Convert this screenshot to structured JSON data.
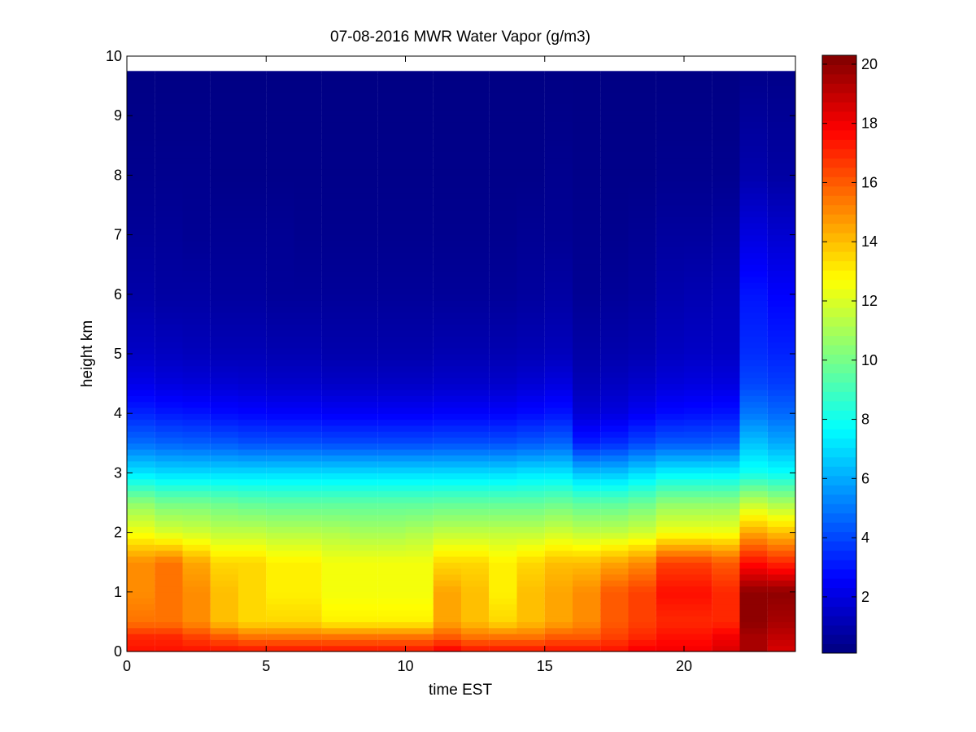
{
  "chart_data": {
    "type": "heatmap",
    "title": "07-08-2016 MWR Water Vapor (g/m3)",
    "xlabel": "time EST",
    "ylabel": "height km",
    "xlim": [
      0,
      24
    ],
    "ylim": [
      0,
      10
    ],
    "x_ticks": [
      "0",
      "5",
      "10",
      "15",
      "20"
    ],
    "y_ticks": [
      "0",
      "1",
      "2",
      "3",
      "4",
      "5",
      "6",
      "7",
      "8",
      "9",
      "10"
    ],
    "colorbar": {
      "colormap": "jet",
      "clim": [
        0.1,
        20.3
      ],
      "ticks": [
        "2",
        "4",
        "6",
        "8",
        "10",
        "12",
        "14",
        "16",
        "18",
        "20"
      ]
    },
    "time_hours": [
      0,
      1,
      2,
      3,
      4,
      5,
      6,
      7,
      8,
      9,
      10,
      11,
      12,
      13,
      14,
      15,
      16,
      17,
      18,
      19,
      20,
      21,
      22,
      23
    ],
    "profile_heights_km": [
      0,
      0.25,
      0.5,
      1.0,
      1.5,
      2.0,
      2.5,
      3.0,
      3.5,
      4.0,
      4.5,
      5.0,
      6.0,
      7.0,
      8.0,
      9.75
    ],
    "profiles_g_m3": [
      [
        17.5,
        17.0,
        15.5,
        15.0,
        15.0,
        12.5,
        10.5,
        7.2,
        4.8,
        3.3,
        2.2,
        1.5,
        0.9,
        0.6,
        0.4,
        0.2
      ],
      [
        17.5,
        17.0,
        15.5,
        15.5,
        15.5,
        12.0,
        10.0,
        7.0,
        4.6,
        3.1,
        2.0,
        1.4,
        0.8,
        0.6,
        0.4,
        0.2
      ],
      [
        17.5,
        16.5,
        15.0,
        15.0,
        14.5,
        11.8,
        10.0,
        7.0,
        4.5,
        3.0,
        1.9,
        1.3,
        0.8,
        0.5,
        0.4,
        0.2
      ],
      [
        17.5,
        16.0,
        14.0,
        14.0,
        13.5,
        11.5,
        9.8,
        7.0,
        4.4,
        2.8,
        1.8,
        1.2,
        0.7,
        0.5,
        0.3,
        0.2
      ],
      [
        17.5,
        15.5,
        13.5,
        13.5,
        13.5,
        11.5,
        9.6,
        7.0,
        4.2,
        2.7,
        1.7,
        1.2,
        0.7,
        0.5,
        0.3,
        0.2
      ],
      [
        17.5,
        15.5,
        13.5,
        13.0,
        13.0,
        11.3,
        9.5,
        7.0,
        4.2,
        2.6,
        1.6,
        1.1,
        0.6,
        0.5,
        0.3,
        0.2
      ],
      [
        17.5,
        15.5,
        13.5,
        13.0,
        13.0,
        11.3,
        9.5,
        7.0,
        4.2,
        2.6,
        1.6,
        1.1,
        0.6,
        0.4,
        0.3,
        0.2
      ],
      [
        17.5,
        15.5,
        13.0,
        12.5,
        12.5,
        11.2,
        9.5,
        7.0,
        4.1,
        2.5,
        1.5,
        1.0,
        0.6,
        0.4,
        0.3,
        0.2
      ],
      [
        17.5,
        15.5,
        13.0,
        12.5,
        12.5,
        11.0,
        9.5,
        7.0,
        4.1,
        2.5,
        1.5,
        1.0,
        0.6,
        0.4,
        0.3,
        0.2
      ],
      [
        17.5,
        15.5,
        13.0,
        12.5,
        12.5,
        11.0,
        9.5,
        7.0,
        4.1,
        2.5,
        1.5,
        1.0,
        0.6,
        0.4,
        0.3,
        0.2
      ],
      [
        17.5,
        15.5,
        13.0,
        12.5,
        12.5,
        11.2,
        9.5,
        7.0,
        4.1,
        2.5,
        1.5,
        1.0,
        0.6,
        0.4,
        0.3,
        0.2
      ],
      [
        18.0,
        16.0,
        14.5,
        14.5,
        13.5,
        11.5,
        9.6,
        7.0,
        4.2,
        2.6,
        1.6,
        1.1,
        0.6,
        0.4,
        0.3,
        0.2
      ],
      [
        17.5,
        15.5,
        14.0,
        14.0,
        13.5,
        11.5,
        9.6,
        7.0,
        4.2,
        2.6,
        1.6,
        1.1,
        0.6,
        0.4,
        0.3,
        0.2
      ],
      [
        17.5,
        15.5,
        13.5,
        13.0,
        13.0,
        11.5,
        9.6,
        7.0,
        4.2,
        2.6,
        1.6,
        1.1,
        0.6,
        0.4,
        0.3,
        0.2
      ],
      [
        17.5,
        15.5,
        14.0,
        14.0,
        13.5,
        11.5,
        9.6,
        7.2,
        4.4,
        2.8,
        1.8,
        1.2,
        0.7,
        0.5,
        0.3,
        0.2
      ],
      [
        17.5,
        16.0,
        14.5,
        14.5,
        14.0,
        11.8,
        9.8,
        7.2,
        4.6,
        3.0,
        2.0,
        1.3,
        0.8,
        0.5,
        0.4,
        0.2
      ],
      [
        17.5,
        16.0,
        15.0,
        15.0,
        14.0,
        11.5,
        9.5,
        6.5,
        3.2,
        1.8,
        1.2,
        0.9,
        0.5,
        0.4,
        0.3,
        0.2
      ],
      [
        17.5,
        16.5,
        16.0,
        16.0,
        14.5,
        11.5,
        9.5,
        6.5,
        3.5,
        2.0,
        1.4,
        1.0,
        0.6,
        0.4,
        0.3,
        0.2
      ],
      [
        18.0,
        17.0,
        16.5,
        16.5,
        15.0,
        11.8,
        9.8,
        7.0,
        4.0,
        2.4,
        1.6,
        1.1,
        0.7,
        0.5,
        0.3,
        0.2
      ],
      [
        18.0,
        17.5,
        17.0,
        17.5,
        16.5,
        12.5,
        10.5,
        7.5,
        4.4,
        2.8,
        1.9,
        1.4,
        1.0,
        0.7,
        0.4,
        0.2
      ],
      [
        18.0,
        17.5,
        17.0,
        17.5,
        16.5,
        12.5,
        10.5,
        7.5,
        4.4,
        2.9,
        2.0,
        1.5,
        1.1,
        0.7,
        0.4,
        0.2
      ],
      [
        18.5,
        18.0,
        17.0,
        17.0,
        16.0,
        12.5,
        10.5,
        7.5,
        4.5,
        3.0,
        2.0,
        1.5,
        1.2,
        0.8,
        0.4,
        0.2
      ],
      [
        19.5,
        19.5,
        20.0,
        20.0,
        17.5,
        14.5,
        11.5,
        8.0,
        6.5,
        5.0,
        4.0,
        3.5,
        3.0,
        2.0,
        1.0,
        0.3
      ],
      [
        18.5,
        19.0,
        19.5,
        20.0,
        17.0,
        14.0,
        11.0,
        7.8,
        6.0,
        4.7,
        3.8,
        3.3,
        2.6,
        1.7,
        0.8,
        0.3
      ]
    ]
  }
}
